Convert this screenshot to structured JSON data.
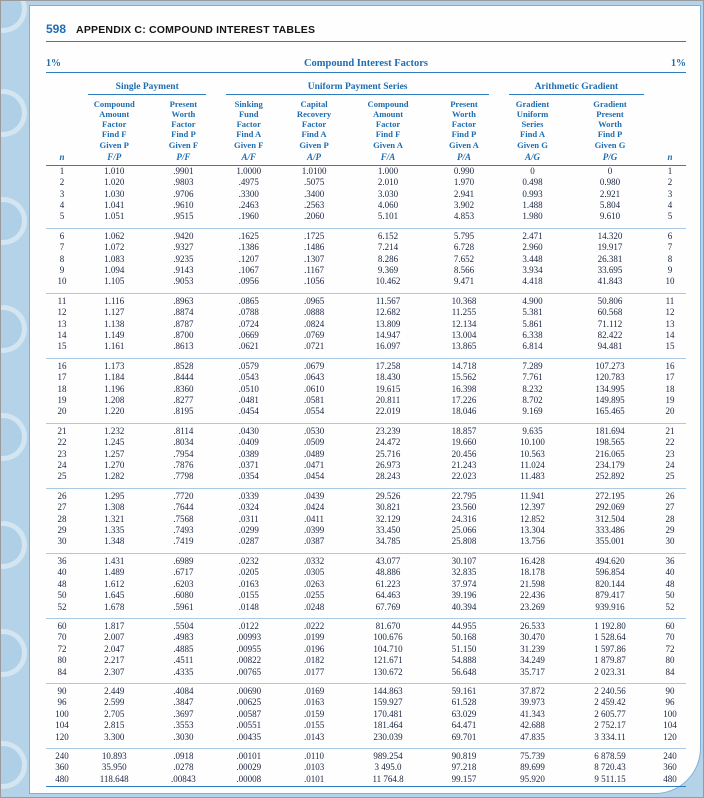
{
  "colors": {
    "accent_blue": "#1e6db2",
    "rule_blue": "#2f7cc0",
    "background_blue": "#b5d3e8",
    "text_dark": "#18243f"
  },
  "page": {
    "number": "598",
    "title": "APPENDIX C: COMPOUND INTEREST TABLES"
  },
  "table": {
    "rate_left": "1%",
    "rate_right": "1%",
    "title": "Compound Interest Factors",
    "n_label": "n",
    "groups": [
      {
        "label": "Single Payment"
      },
      {
        "label": "Uniform Payment Series"
      },
      {
        "label": "Arithmetic Gradient"
      }
    ],
    "columns": [
      {
        "header": "Compound\nAmount\nFactor\nFind F\nGiven P",
        "symbol": "F/P"
      },
      {
        "header": "Present\nWorth\nFactor\nFind P\nGiven F",
        "symbol": "P/F"
      },
      {
        "header": "Sinking\nFund\nFactor\nFind A\nGiven F",
        "symbol": "A/F"
      },
      {
        "header": "Capital\nRecovery\nFactor\nFind A\nGiven P",
        "symbol": "A/P"
      },
      {
        "header": "Compound\nAmount\nFactor\nFind F\nGiven A",
        "symbol": "F/A"
      },
      {
        "header": "Present\nWorth\nFactor\nFind P\nGiven A",
        "symbol": "P/A"
      },
      {
        "header": "Gradient\nUniform\nSeries\nFind A\nGiven G",
        "symbol": "A/G"
      },
      {
        "header": "Gradient\nPresent\nWorth\nFind P\nGiven G",
        "symbol": "P/G"
      }
    ],
    "blocks": [
      [
        [
          "1",
          "1.010",
          ".9901",
          "1.0000",
          "1.0100",
          "1.000",
          "0.990",
          "0",
          "0",
          "1"
        ],
        [
          "2",
          "1.020",
          ".9803",
          ".4975",
          ".5075",
          "2.010",
          "1.970",
          "0.498",
          "0.980",
          "2"
        ],
        [
          "3",
          "1.030",
          ".9706",
          ".3300",
          ".3400",
          "3.030",
          "2.941",
          "0.993",
          "2.921",
          "3"
        ],
        [
          "4",
          "1.041",
          ".9610",
          ".2463",
          ".2563",
          "4.060",
          "3.902",
          "1.488",
          "5.804",
          "4"
        ],
        [
          "5",
          "1.051",
          ".9515",
          ".1960",
          ".2060",
          "5.101",
          "4.853",
          "1.980",
          "9.610",
          "5"
        ]
      ],
      [
        [
          "6",
          "1.062",
          ".9420",
          ".1625",
          ".1725",
          "6.152",
          "5.795",
          "2.471",
          "14.320",
          "6"
        ],
        [
          "7",
          "1.072",
          ".9327",
          ".1386",
          ".1486",
          "7.214",
          "6.728",
          "2.960",
          "19.917",
          "7"
        ],
        [
          "8",
          "1.083",
          ".9235",
          ".1207",
          ".1307",
          "8.286",
          "7.652",
          "3.448",
          "26.381",
          "8"
        ],
        [
          "9",
          "1.094",
          ".9143",
          ".1067",
          ".1167",
          "9.369",
          "8.566",
          "3.934",
          "33.695",
          "9"
        ],
        [
          "10",
          "1.105",
          ".9053",
          ".0956",
          ".1056",
          "10.462",
          "9.471",
          "4.418",
          "41.843",
          "10"
        ]
      ],
      [
        [
          "11",
          "1.116",
          ".8963",
          ".0865",
          ".0965",
          "11.567",
          "10.368",
          "4.900",
          "50.806",
          "11"
        ],
        [
          "12",
          "1.127",
          ".8874",
          ".0788",
          ".0888",
          "12.682",
          "11.255",
          "5.381",
          "60.568",
          "12"
        ],
        [
          "13",
          "1.138",
          ".8787",
          ".0724",
          ".0824",
          "13.809",
          "12.134",
          "5.861",
          "71.112",
          "13"
        ],
        [
          "14",
          "1.149",
          ".8700",
          ".0669",
          ".0769",
          "14.947",
          "13.004",
          "6.338",
          "82.422",
          "14"
        ],
        [
          "15",
          "1.161",
          ".8613",
          ".0621",
          ".0721",
          "16.097",
          "13.865",
          "6.814",
          "94.481",
          "15"
        ]
      ],
      [
        [
          "16",
          "1.173",
          ".8528",
          ".0579",
          ".0679",
          "17.258",
          "14.718",
          "7.289",
          "107.273",
          "16"
        ],
        [
          "17",
          "1.184",
          ".8444",
          ".0543",
          ".0643",
          "18.430",
          "15.562",
          "7.761",
          "120.783",
          "17"
        ],
        [
          "18",
          "1.196",
          ".8360",
          ".0510",
          ".0610",
          "19.615",
          "16.398",
          "8.232",
          "134.995",
          "18"
        ],
        [
          "19",
          "1.208",
          ".8277",
          ".0481",
          ".0581",
          "20.811",
          "17.226",
          "8.702",
          "149.895",
          "19"
        ],
        [
          "20",
          "1.220",
          ".8195",
          ".0454",
          ".0554",
          "22.019",
          "18.046",
          "9.169",
          "165.465",
          "20"
        ]
      ],
      [
        [
          "21",
          "1.232",
          ".8114",
          ".0430",
          ".0530",
          "23.239",
          "18.857",
          "9.635",
          "181.694",
          "21"
        ],
        [
          "22",
          "1.245",
          ".8034",
          ".0409",
          ".0509",
          "24.472",
          "19.660",
          "10.100",
          "198.565",
          "22"
        ],
        [
          "23",
          "1.257",
          ".7954",
          ".0389",
          ".0489",
          "25.716",
          "20.456",
          "10.563",
          "216.065",
          "23"
        ],
        [
          "24",
          "1.270",
          ".7876",
          ".0371",
          ".0471",
          "26.973",
          "21.243",
          "11.024",
          "234.179",
          "24"
        ],
        [
          "25",
          "1.282",
          ".7798",
          ".0354",
          ".0454",
          "28.243",
          "22.023",
          "11.483",
          "252.892",
          "25"
        ]
      ],
      [
        [
          "26",
          "1.295",
          ".7720",
          ".0339",
          ".0439",
          "29.526",
          "22.795",
          "11.941",
          "272.195",
          "26"
        ],
        [
          "27",
          "1.308",
          ".7644",
          ".0324",
          ".0424",
          "30.821",
          "23.560",
          "12.397",
          "292.069",
          "27"
        ],
        [
          "28",
          "1.321",
          ".7568",
          ".0311",
          ".0411",
          "32.129",
          "24.316",
          "12.852",
          "312.504",
          "28"
        ],
        [
          "29",
          "1.335",
          ".7493",
          ".0299",
          ".0399",
          "33.450",
          "25.066",
          "13.304",
          "333.486",
          "29"
        ],
        [
          "30",
          "1.348",
          ".7419",
          ".0287",
          ".0387",
          "34.785",
          "25.808",
          "13.756",
          "355.001",
          "30"
        ]
      ],
      [
        [
          "36",
          "1.431",
          ".6989",
          ".0232",
          ".0332",
          "43.077",
          "30.107",
          "16.428",
          "494.620",
          "36"
        ],
        [
          "40",
          "1.489",
          ".6717",
          ".0205",
          ".0305",
          "48.886",
          "32.835",
          "18.178",
          "596.854",
          "40"
        ],
        [
          "48",
          "1.612",
          ".6203",
          ".0163",
          ".0263",
          "61.223",
          "37.974",
          "21.598",
          "820.144",
          "48"
        ],
        [
          "50",
          "1.645",
          ".6080",
          ".0155",
          ".0255",
          "64.463",
          "39.196",
          "22.436",
          "879.417",
          "50"
        ],
        [
          "52",
          "1.678",
          ".5961",
          ".0148",
          ".0248",
          "67.769",
          "40.394",
          "23.269",
          "939.916",
          "52"
        ]
      ],
      [
        [
          "60",
          "1.817",
          ".5504",
          ".0122",
          ".0222",
          "81.670",
          "44.955",
          "26.533",
          "1 192.80",
          "60"
        ],
        [
          "70",
          "2.007",
          ".4983",
          ".00993",
          ".0199",
          "100.676",
          "50.168",
          "30.470",
          "1 528.64",
          "70"
        ],
        [
          "72",
          "2.047",
          ".4885",
          ".00955",
          ".0196",
          "104.710",
          "51.150",
          "31.239",
          "1 597.86",
          "72"
        ],
        [
          "80",
          "2.217",
          ".4511",
          ".00822",
          ".0182",
          "121.671",
          "54.888",
          "34.249",
          "1 879.87",
          "80"
        ],
        [
          "84",
          "2.307",
          ".4335",
          ".00765",
          ".0177",
          "130.672",
          "56.648",
          "35.717",
          "2 023.31",
          "84"
        ]
      ],
      [
        [
          "90",
          "2.449",
          ".4084",
          ".00690",
          ".0169",
          "144.863",
          "59.161",
          "37.872",
          "2 240.56",
          "90"
        ],
        [
          "96",
          "2.599",
          ".3847",
          ".00625",
          ".0163",
          "159.927",
          "61.528",
          "39.973",
          "2 459.42",
          "96"
        ],
        [
          "100",
          "2.705",
          ".3697",
          ".00587",
          ".0159",
          "170.481",
          "63.029",
          "41.343",
          "2 605.77",
          "100"
        ],
        [
          "104",
          "2.815",
          ".3553",
          ".00551",
          ".0155",
          "181.464",
          "64.471",
          "42.688",
          "2 752.17",
          "104"
        ],
        [
          "120",
          "3.300",
          ".3030",
          ".00435",
          ".0143",
          "230.039",
          "69.701",
          "47.835",
          "3 334.11",
          "120"
        ]
      ],
      [
        [
          "240",
          "10.893",
          ".0918",
          ".00101",
          ".0110",
          "989.254",
          "90.819",
          "75.739",
          "6 878.59",
          "240"
        ],
        [
          "360",
          "35.950",
          ".0278",
          ".00029",
          ".0103",
          "3 495.0",
          "97.218",
          "89.699",
          "8 720.43",
          "360"
        ],
        [
          "480",
          "118.648",
          ".00843",
          ".00008",
          ".0101",
          "11 764.8",
          "99.157",
          "95.920",
          "9 511.15",
          "480"
        ]
      ]
    ]
  }
}
